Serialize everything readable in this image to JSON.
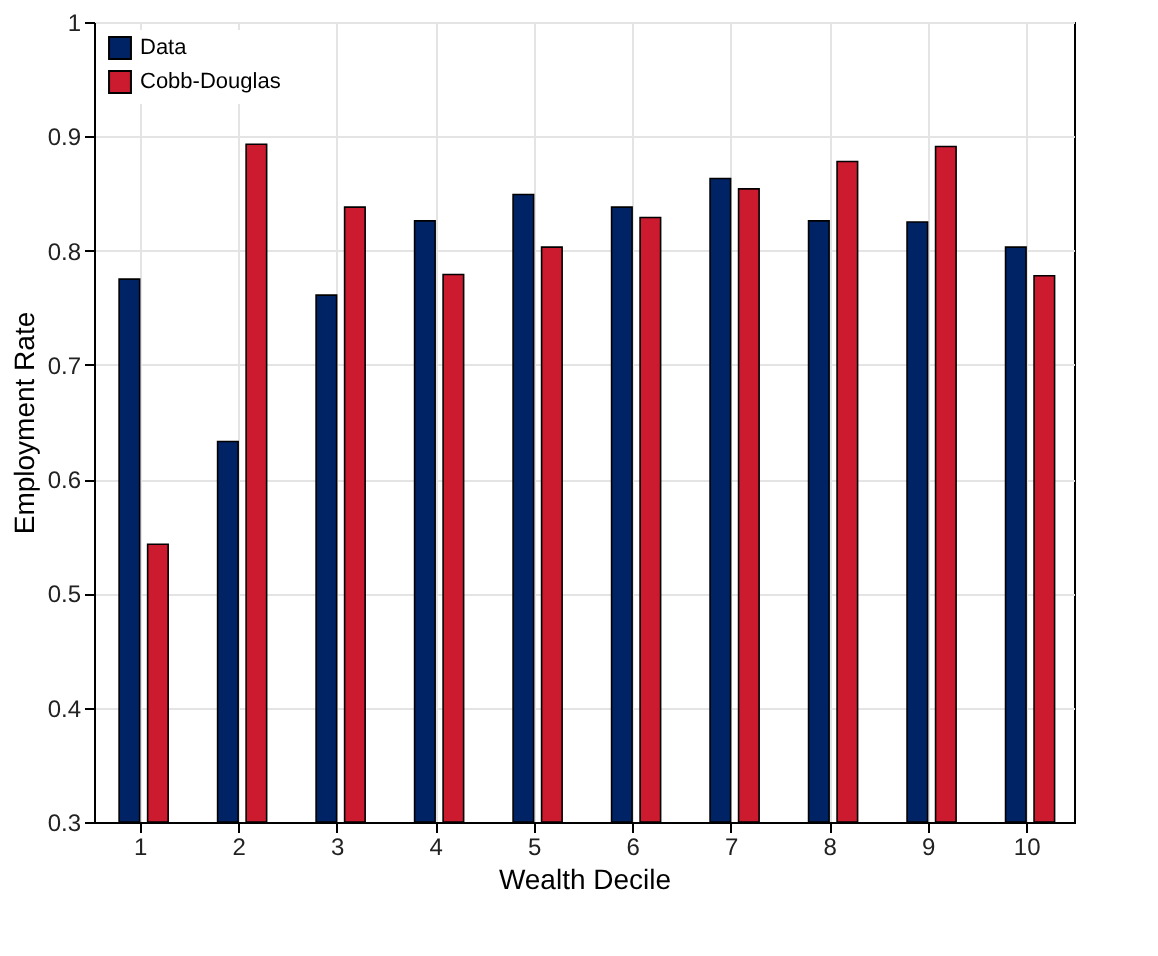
{
  "chart_data": {
    "type": "bar",
    "xlabel": "Wealth Decile",
    "ylabel": "Employment Rate",
    "categories": [
      "1",
      "2",
      "3",
      "4",
      "5",
      "6",
      "7",
      "8",
      "9",
      "10"
    ],
    "series": [
      {
        "name": "Data",
        "color": "#002366",
        "values": [
          0.775,
          0.633,
          0.761,
          0.826,
          0.849,
          0.838,
          0.863,
          0.826,
          0.825,
          0.803
        ]
      },
      {
        "name": "Cobb-Douglas",
        "color": "#cc1a2e",
        "values": [
          0.543,
          0.893,
          0.838,
          0.779,
          0.803,
          0.829,
          0.854,
          0.878,
          0.891,
          0.778
        ]
      }
    ],
    "ylim": [
      0.3,
      1
    ],
    "yticks": [
      0.3,
      0.4,
      0.5,
      0.6,
      0.7,
      0.8,
      0.9,
      1
    ],
    "grid": true,
    "legend": "top left"
  }
}
